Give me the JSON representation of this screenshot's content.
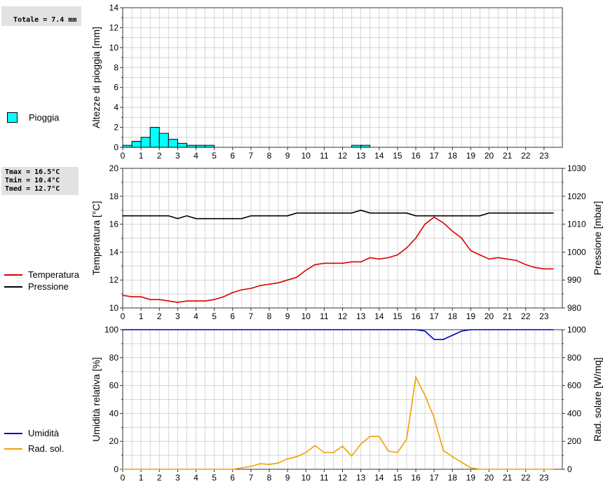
{
  "summary": {
    "rain_total": "Totale = 7.4 mm",
    "tmax": "Tmax = 16.5°C",
    "tmin": "Tmin = 10.4°C",
    "tmed": "Tmed = 12.7°C"
  },
  "legend": {
    "rain": {
      "label": "Pioggia",
      "color": "#00ffff"
    },
    "temperature": {
      "label": "Temperatura",
      "color": "#dd0000"
    },
    "pressure": {
      "label": "Pressione",
      "color": "#000000"
    },
    "humidity": {
      "label": "Umidità",
      "color": "#0000cc"
    },
    "solar": {
      "label": "Rad. sol.",
      "color": "#f0a000"
    }
  },
  "chart_data": [
    {
      "type": "bar",
      "ylabel": "Altezze di pioggia [mm]",
      "ylim": [
        0,
        14
      ],
      "yticks": [
        0,
        2,
        4,
        6,
        8,
        10,
        12,
        14
      ],
      "xlim": [
        0,
        24
      ],
      "xticks": [
        0,
        1,
        2,
        3,
        4,
        5,
        6,
        7,
        8,
        9,
        10,
        11,
        12,
        13,
        14,
        15,
        16,
        17,
        18,
        19,
        20,
        21,
        22,
        23
      ],
      "grid": true,
      "series": [
        {
          "name": "Pioggia",
          "x": [
            0,
            0.5,
            1,
            1.5,
            2,
            2.5,
            3,
            3.5,
            4,
            4.5,
            12.5,
            13
          ],
          "values": [
            0.2,
            0.6,
            1.0,
            2.0,
            1.4,
            0.8,
            0.4,
            0.2,
            0.2,
            0.2,
            0.2,
            0.2
          ]
        }
      ]
    },
    {
      "type": "line",
      "ylabel": "Temperatura [°C]",
      "ylabel_right": "Pressione [mbar]",
      "ylim": [
        10,
        20
      ],
      "yticks": [
        10,
        12,
        14,
        16,
        18,
        20
      ],
      "ylim_right": [
        980,
        1030
      ],
      "yticks_right": [
        980,
        990,
        1000,
        1010,
        1020,
        1030
      ],
      "xlim": [
        0,
        24
      ],
      "xticks": [
        0,
        1,
        2,
        3,
        4,
        5,
        6,
        7,
        8,
        9,
        10,
        11,
        12,
        13,
        14,
        15,
        16,
        17,
        18,
        19,
        20,
        21,
        22,
        23
      ],
      "grid": true,
      "series": [
        {
          "name": "Temperatura",
          "axis": "left",
          "x": [
            0,
            0.5,
            1,
            1.5,
            2,
            2.5,
            3,
            3.5,
            4,
            4.5,
            5,
            5.5,
            6,
            6.5,
            7,
            7.5,
            8,
            8.5,
            9,
            9.5,
            10,
            10.5,
            11,
            11.5,
            12,
            12.5,
            13,
            13.5,
            14,
            14.5,
            15,
            15.5,
            16,
            16.5,
            17,
            17.5,
            18,
            18.5,
            19,
            19.5,
            20,
            20.5,
            21,
            21.5,
            22,
            22.5,
            23,
            23.5
          ],
          "values": [
            10.9,
            10.8,
            10.8,
            10.6,
            10.6,
            10.5,
            10.4,
            10.5,
            10.5,
            10.5,
            10.6,
            10.8,
            11.1,
            11.3,
            11.4,
            11.6,
            11.7,
            11.8,
            12.0,
            12.2,
            12.7,
            13.1,
            13.2,
            13.2,
            13.2,
            13.3,
            13.3,
            13.6,
            13.5,
            13.6,
            13.8,
            14.3,
            15.0,
            16.0,
            16.5,
            16.1,
            15.5,
            15.0,
            14.1,
            13.8,
            13.5,
            13.6,
            13.5,
            13.4,
            13.1,
            12.9,
            12.8,
            12.8
          ]
        },
        {
          "name": "Pressione",
          "axis": "right",
          "x": [
            0,
            0.5,
            1,
            1.5,
            2,
            2.5,
            3,
            3.5,
            4,
            4.5,
            5,
            5.5,
            6,
            6.5,
            7,
            7.5,
            8,
            8.5,
            9,
            9.5,
            10,
            10.5,
            11,
            11.5,
            12,
            12.5,
            13,
            13.5,
            14,
            14.5,
            15,
            15.5,
            16,
            16.5,
            17,
            17.5,
            18,
            18.5,
            19,
            19.5,
            20,
            20.5,
            21,
            21.5,
            22,
            22.5,
            23,
            23.5
          ],
          "values": [
            1013,
            1013,
            1013,
            1013,
            1013,
            1013,
            1012,
            1013,
            1012,
            1012,
            1012,
            1012,
            1012,
            1012,
            1013,
            1013,
            1013,
            1013,
            1013,
            1014,
            1014,
            1014,
            1014,
            1014,
            1014,
            1014,
            1015,
            1014,
            1014,
            1014,
            1014,
            1014,
            1013,
            1013,
            1013,
            1013,
            1013,
            1013,
            1013,
            1013,
            1014,
            1014,
            1014,
            1014,
            1014,
            1014,
            1014,
            1014
          ]
        }
      ]
    },
    {
      "type": "line",
      "ylabel": "Umidità relativa [%]",
      "ylabel_right": "Rad. solare [W/mq]",
      "ylim": [
        0,
        100
      ],
      "yticks": [
        0,
        20,
        40,
        60,
        80,
        100
      ],
      "ylim_right": [
        0,
        1000
      ],
      "yticks_right": [
        0,
        200,
        400,
        600,
        800,
        1000
      ],
      "xlim": [
        0,
        24
      ],
      "xticks": [
        0,
        1,
        2,
        3,
        4,
        5,
        6,
        7,
        8,
        9,
        10,
        11,
        12,
        13,
        14,
        15,
        16,
        17,
        18,
        19,
        20,
        21,
        22,
        23
      ],
      "grid": true,
      "series": [
        {
          "name": "Umidità",
          "axis": "left",
          "x": [
            0,
            16,
            16.5,
            17,
            17.5,
            18,
            18.5,
            19,
            23.5
          ],
          "values": [
            100,
            100,
            99,
            93,
            93,
            96,
            99,
            100,
            100
          ]
        },
        {
          "name": "Rad. sol.",
          "axis": "right",
          "x": [
            0,
            0.5,
            1,
            1.5,
            2,
            2.5,
            3,
            3.5,
            4,
            4.5,
            5,
            5.5,
            6,
            6.5,
            7,
            7.5,
            8,
            8.5,
            9,
            9.5,
            10,
            10.5,
            11,
            11.5,
            12,
            12.5,
            13,
            13.5,
            14,
            14.5,
            15,
            15.5,
            16,
            16.5,
            17,
            17.5,
            18,
            18.5,
            19,
            19.5,
            20,
            20.5,
            21,
            21.5,
            22,
            22.5,
            23,
            23.5
          ],
          "values": [
            0,
            0,
            0,
            0,
            0,
            0,
            0,
            0,
            0,
            0,
            0,
            0,
            0,
            10,
            20,
            40,
            35,
            45,
            75,
            90,
            120,
            170,
            120,
            120,
            165,
            95,
            180,
            235,
            235,
            130,
            120,
            215,
            660,
            530,
            370,
            135,
            90,
            50,
            10,
            0,
            0,
            0,
            0,
            0,
            0,
            0,
            0,
            0
          ]
        }
      ]
    }
  ]
}
